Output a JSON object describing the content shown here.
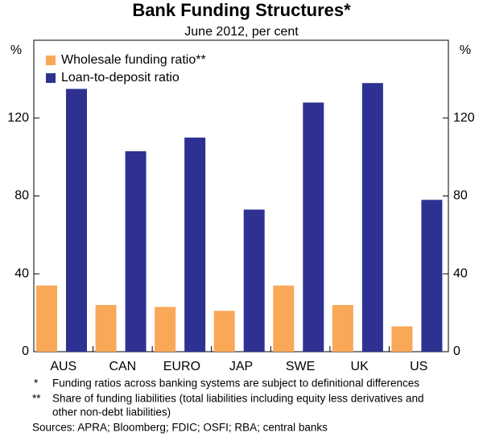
{
  "chart_data": {
    "type": "bar",
    "title": "Bank Funding Structures*",
    "subtitle": "June 2012, per cent",
    "y_label": "%",
    "y2_label": "%",
    "categories": [
      "AUS",
      "CAN",
      "EURO",
      "JAP",
      "SWE",
      "UK",
      "US"
    ],
    "series": [
      {
        "name": "Wholesale funding ratio**",
        "color": "#f9a858",
        "values": [
          34,
          24,
          23,
          21,
          34,
          24,
          13
        ]
      },
      {
        "name": "Loan-to-deposit ratio",
        "color": "#2e3192",
        "values": [
          135,
          103,
          110,
          73,
          128,
          138,
          78
        ]
      }
    ],
    "ylim": [
      0,
      160
    ],
    "yticks": [
      0,
      40,
      80,
      120
    ],
    "y2lim": [
      0,
      160
    ],
    "y2ticks": [
      0,
      40,
      80,
      120
    ],
    "legend": "top-left",
    "notes": [
      {
        "marker": "*",
        "text": "Funding ratios across banking systems are subject to definitional differences"
      },
      {
        "marker": "**",
        "text": "Share of funding liabilities (total liabilities including equity less derivatives and"
      },
      {
        "marker": "",
        "text": "other non-debt liabilities)"
      }
    ],
    "source": "Sources: APRA; Bloomberg; FDIC; OSFI; RBA; central banks"
  }
}
